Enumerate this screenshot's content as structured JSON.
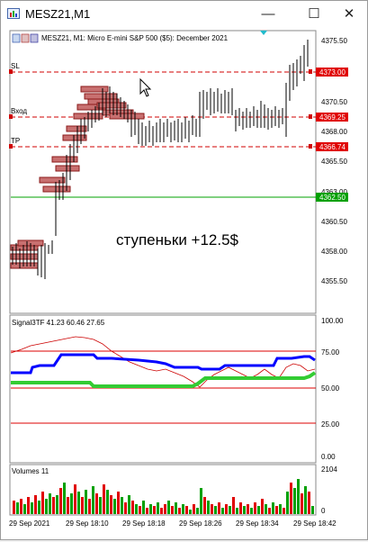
{
  "window": {
    "title": "MESZ21,M1",
    "minimize_icon": "minimize-icon",
    "maximize_icon": "maximize-icon",
    "close_icon": "close-icon"
  },
  "main_chart": {
    "header": "MESZ21, M1:  Micro E-mini S&P 500 ($5): December 2021",
    "overlay_text": "ступеньки +12.5$",
    "price_axis": [
      "4375.50",
      "4373.00",
      "4370.50",
      "4368.00",
      "4365.50",
      "4363.00",
      "4360.50",
      "4358.00",
      "4355.50"
    ],
    "lines": [
      {
        "label": "SL",
        "price": "4373.00",
        "color": "#d00000"
      },
      {
        "label": "Вход",
        "price": "4369.25",
        "color": "#d00000"
      },
      {
        "label": "TP",
        "price": "4366.74",
        "color": "#d00000"
      },
      {
        "label": "",
        "price": "4362.50",
        "color": "#00a000"
      }
    ]
  },
  "indicator": {
    "header": "Signal3TF 41.23 60.46 27.65",
    "axis": [
      "100.00",
      "75.00",
      "50.00",
      "25.00",
      "0.00"
    ],
    "colors": {
      "blue": "#0000ff",
      "green": "#33cc33",
      "thin_red": "#cc0000",
      "levels": "#dd0000"
    }
  },
  "volumes": {
    "header": "Volumes 11",
    "axis": [
      "2104",
      "0"
    ],
    "colors": {
      "up": "#00a000",
      "down": "#e00000"
    }
  },
  "time_axis": [
    "29 Sep 2021",
    "29 Sep 18:10",
    "29 Sep 18:18",
    "29 Sep 18:26",
    "29 Sep 18:34",
    "29 Sep 18:42"
  ]
}
